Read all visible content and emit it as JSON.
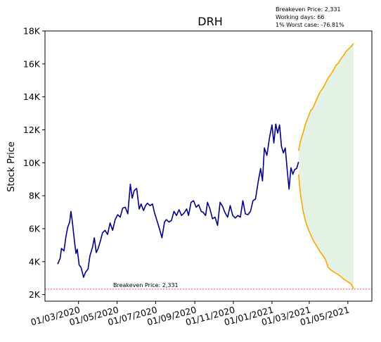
{
  "chart_data": {
    "type": "line",
    "title": "DRH",
    "ylabel": "Stock Price",
    "xlabel": "",
    "ylim": [
      1600,
      18000
    ],
    "xlim": [
      "2020-01-08",
      "2021-06-08"
    ],
    "y_ticks": [
      2000,
      4000,
      6000,
      8000,
      10000,
      12000,
      14000,
      16000,
      18000
    ],
    "y_tick_labels": [
      "2K",
      "4K",
      "6K",
      "8K",
      "10K",
      "12K",
      "14K",
      "16K",
      "18K"
    ],
    "x_ticks": [
      "2020-03-01",
      "2020-05-01",
      "2020-07-01",
      "2020-09-01",
      "2020-11-01",
      "2021-01-01",
      "2021-03-01",
      "2021-05-01"
    ],
    "x_tick_labels": [
      "01/03/2020",
      "01/05/2020",
      "01/07/2020",
      "01/09/2020",
      "01/11/2020",
      "01/01/2021",
      "01/03/2021",
      "01/05/2021"
    ],
    "grid": false,
    "info_lines": [
      "Breakeven Price: 2,331",
      "Working days: 66",
      "1% Worst case: -76.81%"
    ],
    "breakeven": {
      "value": 2331,
      "label": "Breakeven Price: 2,331",
      "color": "#ff0000"
    },
    "series": [
      {
        "color": "#00008b",
        "points": [
          [
            "2020-01-28",
            3850
          ],
          [
            "2020-02-01",
            4200
          ],
          [
            "2020-02-03",
            4800
          ],
          [
            "2020-02-07",
            4650
          ],
          [
            "2020-02-10",
            5500
          ],
          [
            "2020-02-13",
            6100
          ],
          [
            "2020-02-16",
            6400
          ],
          [
            "2020-02-18",
            7050
          ],
          [
            "2020-02-20",
            6500
          ],
          [
            "2020-02-22",
            5800
          ],
          [
            "2020-02-24",
            5100
          ],
          [
            "2020-02-26",
            4500
          ],
          [
            "2020-02-28",
            4750
          ],
          [
            "2020-03-02",
            3800
          ],
          [
            "2020-03-05",
            3650
          ],
          [
            "2020-03-09",
            3050
          ],
          [
            "2020-03-12",
            3350
          ],
          [
            "2020-03-16",
            3550
          ],
          [
            "2020-03-19",
            4350
          ],
          [
            "2020-03-23",
            4850
          ],
          [
            "2020-03-26",
            5450
          ],
          [
            "2020-03-29",
            4550
          ],
          [
            "2020-04-01",
            4800
          ],
          [
            "2020-04-05",
            5300
          ],
          [
            "2020-04-08",
            5750
          ],
          [
            "2020-04-12",
            5900
          ],
          [
            "2020-04-16",
            5650
          ],
          [
            "2020-04-20",
            6350
          ],
          [
            "2020-04-24",
            5900
          ],
          [
            "2020-04-28",
            6550
          ],
          [
            "2020-05-02",
            6850
          ],
          [
            "2020-05-06",
            6700
          ],
          [
            "2020-05-10",
            7250
          ],
          [
            "2020-05-14",
            7300
          ],
          [
            "2020-05-18",
            6900
          ],
          [
            "2020-05-22",
            8700
          ],
          [
            "2020-05-25",
            7850
          ],
          [
            "2020-05-28",
            8300
          ],
          [
            "2020-06-01",
            8450
          ],
          [
            "2020-06-05",
            7200
          ],
          [
            "2020-06-08",
            7500
          ],
          [
            "2020-06-12",
            7100
          ],
          [
            "2020-06-15",
            7400
          ],
          [
            "2020-06-18",
            7550
          ],
          [
            "2020-06-22",
            7400
          ],
          [
            "2020-06-26",
            7500
          ],
          [
            "2020-06-29",
            7000
          ],
          [
            "2020-07-03",
            6500
          ],
          [
            "2020-07-07",
            6000
          ],
          [
            "2020-07-11",
            5450
          ],
          [
            "2020-07-15",
            6400
          ],
          [
            "2020-07-18",
            6550
          ],
          [
            "2020-07-22",
            6400
          ],
          [
            "2020-07-26",
            6500
          ],
          [
            "2020-07-30",
            7050
          ],
          [
            "2020-08-03",
            6800
          ],
          [
            "2020-08-07",
            7150
          ],
          [
            "2020-08-11",
            6800
          ],
          [
            "2020-08-15",
            6950
          ],
          [
            "2020-08-19",
            7200
          ],
          [
            "2020-08-22",
            6800
          ],
          [
            "2020-08-26",
            7600
          ],
          [
            "2020-08-30",
            7700
          ],
          [
            "2020-09-03",
            7300
          ],
          [
            "2020-09-07",
            7450
          ],
          [
            "2020-09-11",
            7050
          ],
          [
            "2020-09-14",
            7000
          ],
          [
            "2020-09-18",
            6800
          ],
          [
            "2020-09-21",
            7600
          ],
          [
            "2020-09-25",
            7200
          ],
          [
            "2020-09-29",
            6600
          ],
          [
            "2020-10-03",
            6700
          ],
          [
            "2020-10-07",
            6200
          ],
          [
            "2020-10-11",
            7600
          ],
          [
            "2020-10-15",
            7350
          ],
          [
            "2020-10-19",
            6950
          ],
          [
            "2020-10-23",
            6700
          ],
          [
            "2020-10-27",
            7400
          ],
          [
            "2020-10-31",
            6800
          ],
          [
            "2020-11-04",
            6650
          ],
          [
            "2020-11-08",
            6800
          ],
          [
            "2020-11-12",
            6700
          ],
          [
            "2020-11-16",
            7700
          ],
          [
            "2020-11-20",
            6900
          ],
          [
            "2020-11-24",
            6850
          ],
          [
            "2020-11-28",
            7050
          ],
          [
            "2020-12-02",
            7700
          ],
          [
            "2020-12-06",
            7800
          ],
          [
            "2020-12-10",
            8800
          ],
          [
            "2020-12-14",
            9650
          ],
          [
            "2020-12-17",
            8900
          ],
          [
            "2020-12-20",
            10900
          ],
          [
            "2020-12-24",
            10450
          ],
          [
            "2020-12-28",
            11500
          ],
          [
            "2021-01-01",
            12300
          ],
          [
            "2021-01-04",
            11200
          ],
          [
            "2021-01-07",
            12350
          ],
          [
            "2021-01-10",
            11800
          ],
          [
            "2021-01-13",
            12300
          ],
          [
            "2021-01-16",
            11000
          ],
          [
            "2021-01-19",
            10600
          ],
          [
            "2021-01-22",
            10900
          ],
          [
            "2021-01-25",
            9600
          ],
          [
            "2021-01-28",
            8400
          ],
          [
            "2021-01-31",
            9700
          ],
          [
            "2021-02-03",
            9300
          ],
          [
            "2021-02-06",
            9600
          ],
          [
            "2021-02-09",
            9650
          ],
          [
            "2021-02-12",
            10050
          ]
        ]
      },
      {
        "color": "#ffa500",
        "points": [
          [
            "2021-02-12",
            10750
          ],
          [
            "2021-02-15",
            11300
          ],
          [
            "2021-02-19",
            11800
          ],
          [
            "2021-02-23",
            12350
          ],
          [
            "2021-02-27",
            12750
          ],
          [
            "2021-03-03",
            13150
          ],
          [
            "2021-03-07",
            13350
          ],
          [
            "2021-03-11",
            13700
          ],
          [
            "2021-03-15",
            14050
          ],
          [
            "2021-03-19",
            14350
          ],
          [
            "2021-03-23",
            14550
          ],
          [
            "2021-03-27",
            14850
          ],
          [
            "2021-03-31",
            15150
          ],
          [
            "2021-04-04",
            15350
          ],
          [
            "2021-04-08",
            15600
          ],
          [
            "2021-04-12",
            15900
          ],
          [
            "2021-04-16",
            16050
          ],
          [
            "2021-04-20",
            16300
          ],
          [
            "2021-04-24",
            16500
          ],
          [
            "2021-04-28",
            16750
          ],
          [
            "2021-05-02",
            16900
          ],
          [
            "2021-05-06",
            17050
          ],
          [
            "2021-05-10",
            17250
          ]
        ]
      },
      {
        "color": "#ffa500",
        "points": [
          [
            "2021-02-12",
            9300
          ],
          [
            "2021-02-15",
            8100
          ],
          [
            "2021-02-19",
            7100
          ],
          [
            "2021-02-23",
            6450
          ],
          [
            "2021-02-27",
            6000
          ],
          [
            "2021-03-03",
            5650
          ],
          [
            "2021-03-07",
            5300
          ],
          [
            "2021-03-11",
            5050
          ],
          [
            "2021-03-15",
            4800
          ],
          [
            "2021-03-19",
            4550
          ],
          [
            "2021-03-23",
            4350
          ],
          [
            "2021-03-27",
            4100
          ],
          [
            "2021-03-31",
            3650
          ],
          [
            "2021-04-04",
            3500
          ],
          [
            "2021-04-08",
            3400
          ],
          [
            "2021-04-12",
            3300
          ],
          [
            "2021-04-16",
            3200
          ],
          [
            "2021-04-20",
            3100
          ],
          [
            "2021-04-24",
            2950
          ],
          [
            "2021-04-28",
            2850
          ],
          [
            "2021-05-02",
            2750
          ],
          [
            "2021-05-06",
            2650
          ],
          [
            "2021-05-10",
            2350
          ]
        ]
      }
    ],
    "band": {
      "color": "#c8e6c9",
      "opacity": 0.5
    }
  }
}
